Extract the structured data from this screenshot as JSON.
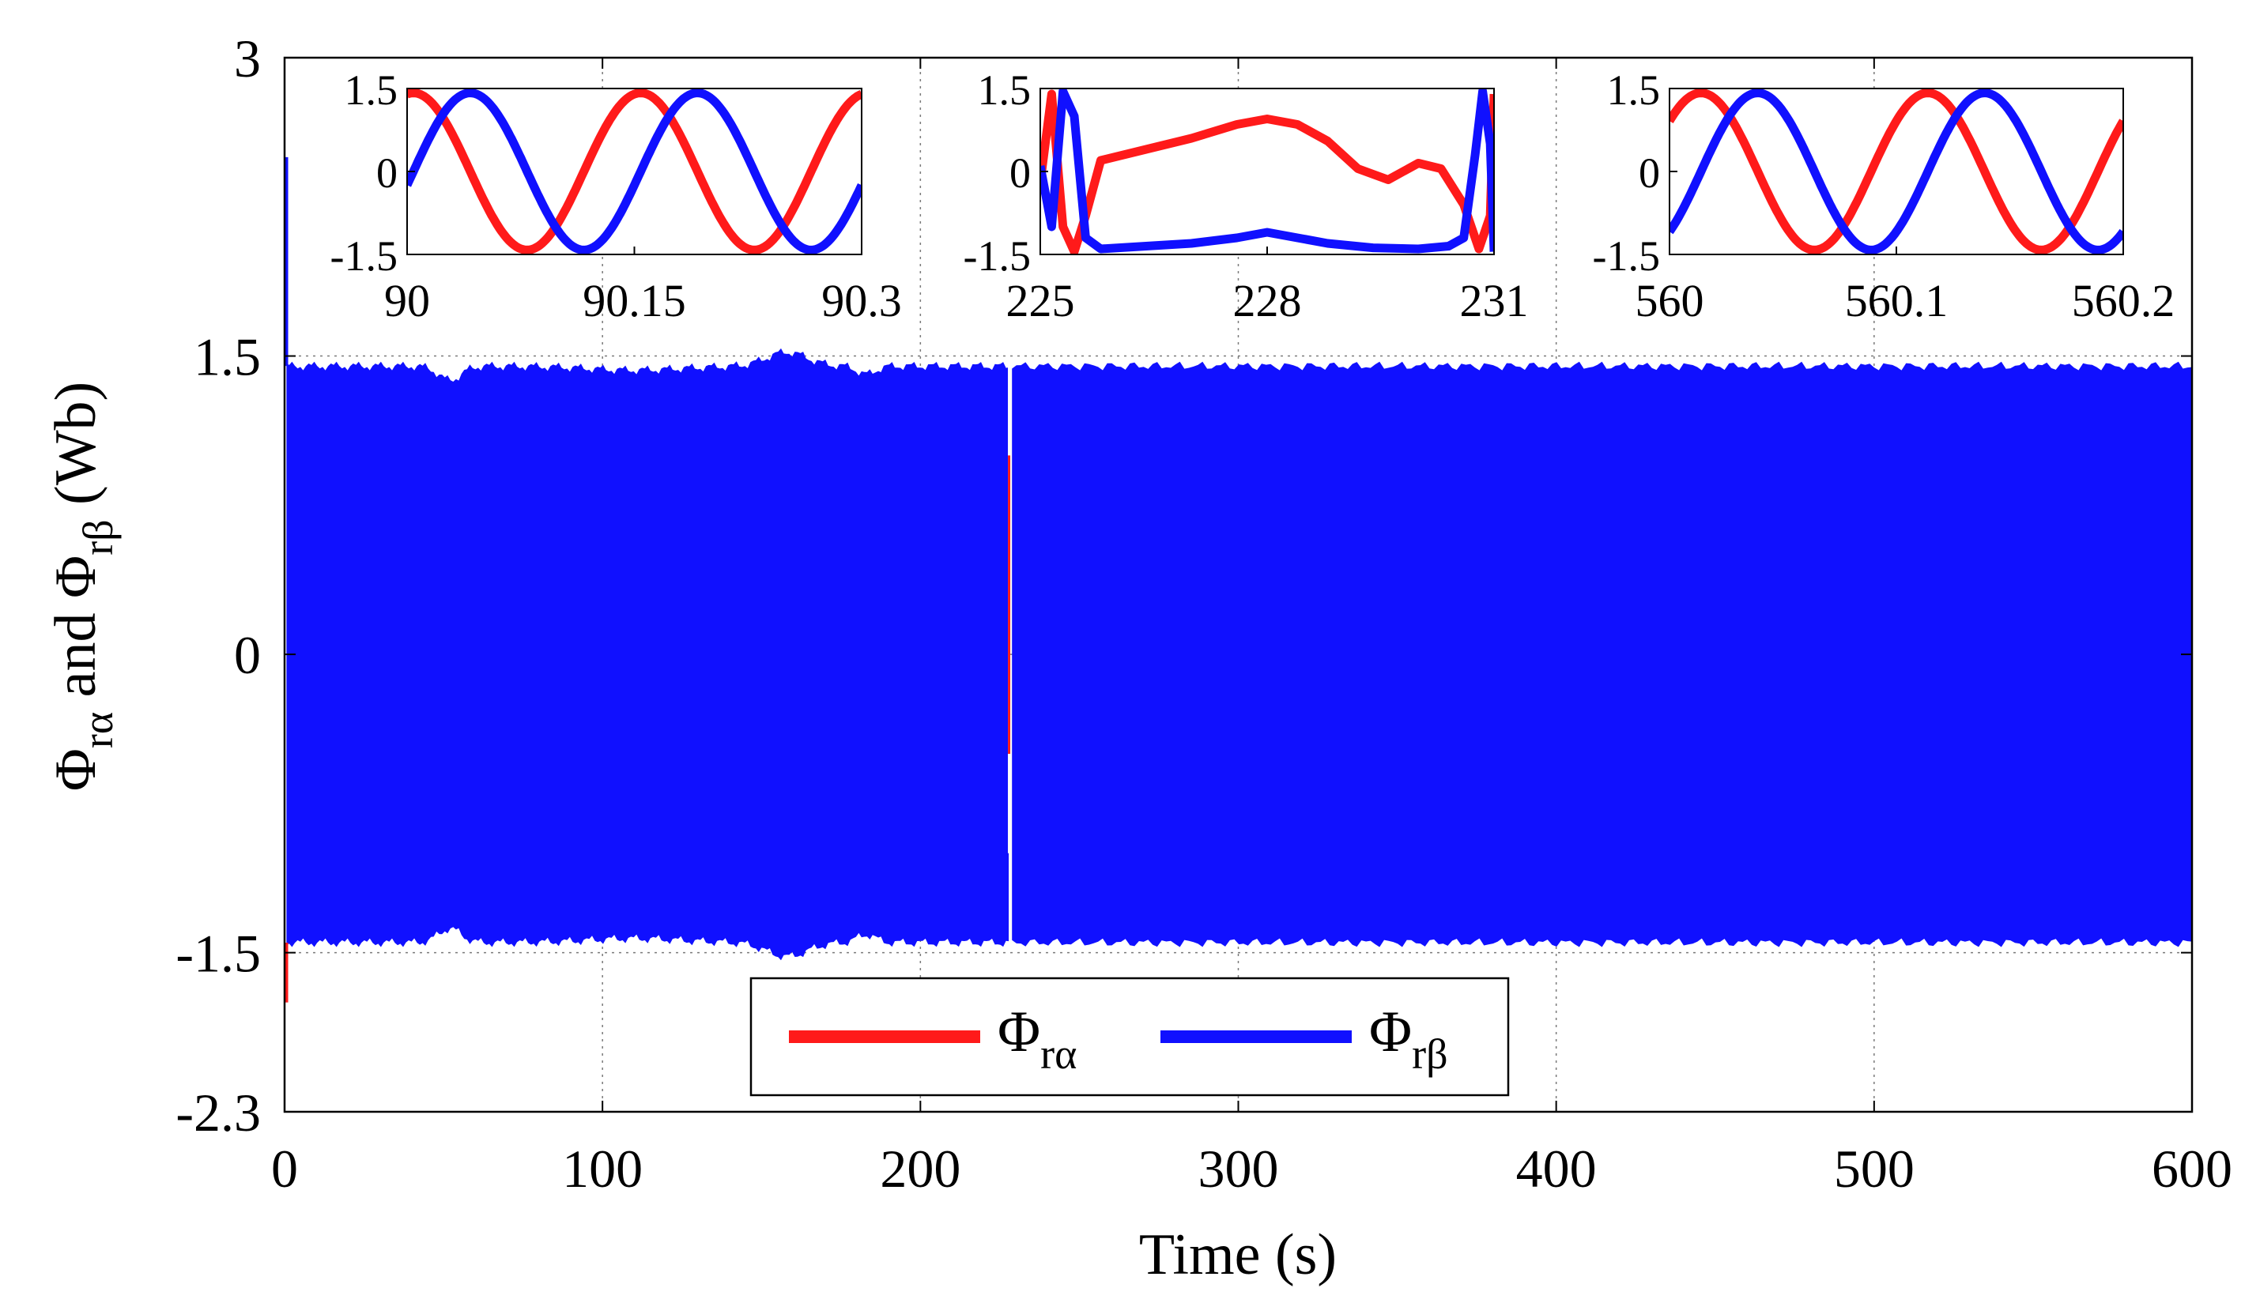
{
  "chart_data": {
    "type": "line",
    "xlabel": "Time (s)",
    "ylabel": {
      "prefix": "Φ",
      "sub1": "rα",
      "mid": " and Φ",
      "sub2": "rβ",
      "unit": " (Wb)"
    },
    "xlim": [
      0,
      600
    ],
    "ylim": [
      -2.3,
      3
    ],
    "xticks": [
      "0",
      "100",
      "200",
      "300",
      "400",
      "500",
      "600"
    ],
    "yticks": [
      {
        "value": 3,
        "label": "3"
      },
      {
        "value": 1.5,
        "label": "1.5"
      },
      {
        "value": 0,
        "label": "0"
      },
      {
        "value": -1.5,
        "label": "-1.5"
      },
      {
        "value": -2.3,
        "label": "-2.3"
      }
    ],
    "grid": true,
    "series": [
      {
        "name": "Φrα",
        "symbol": "Φ",
        "subscript": "rα",
        "color": "#ff1a1a",
        "envelope_upper": 1.45,
        "envelope_lower": -1.45,
        "frequency_hz": 6.7
      },
      {
        "name": "Φrβ",
        "symbol": "Φ",
        "subscript": "rβ",
        "color": "#1010ff",
        "envelope_upper": 1.45,
        "envelope_lower": -1.45,
        "frequency_hz": 6.7
      }
    ],
    "events": [
      {
        "name": "transient",
        "t_start": 225,
        "t_end": 231
      }
    ],
    "legend_position": "bottom-center",
    "insets": [
      {
        "xlim": [
          90,
          90.3
        ],
        "ylim": [
          -1.5,
          1.5
        ],
        "xticks": [
          "90",
          "90.15",
          "90.3"
        ],
        "yticks": [
          "1.5",
          "0",
          "-1.5"
        ],
        "kind": "sine",
        "period": 0.15,
        "alpha_phase_deg": 80,
        "beta_phase_deg": -10
      },
      {
        "xlim": [
          225,
          231
        ],
        "ylim": [
          -1.5,
          1.5
        ],
        "xticks": [
          "225",
          "228",
          "231"
        ],
        "yticks": [
          "1.5",
          "0",
          "-1.5"
        ],
        "kind": "transient",
        "alpha_points": [
          [
            225,
            -0.2
          ],
          [
            225.15,
            1.4
          ],
          [
            225.3,
            -1.0
          ],
          [
            225.45,
            -1.45
          ],
          [
            225.6,
            -0.8
          ],
          [
            225.8,
            0.2
          ],
          [
            226.4,
            0.4
          ],
          [
            227.0,
            0.6
          ],
          [
            227.6,
            0.85
          ],
          [
            228.0,
            0.95
          ],
          [
            228.4,
            0.85
          ],
          [
            228.8,
            0.55
          ],
          [
            229.2,
            0.05
          ],
          [
            229.6,
            -0.15
          ],
          [
            230.0,
            0.15
          ],
          [
            230.3,
            0.05
          ],
          [
            230.6,
            -0.6
          ],
          [
            230.8,
            -1.4
          ],
          [
            230.95,
            -0.8
          ],
          [
            231.0,
            1.4
          ]
        ],
        "beta_points": [
          [
            225,
            0.1
          ],
          [
            225.15,
            -1.0
          ],
          [
            225.3,
            1.45
          ],
          [
            225.45,
            1.0
          ],
          [
            225.6,
            -1.2
          ],
          [
            225.8,
            -1.4
          ],
          [
            226.4,
            -1.35
          ],
          [
            227.0,
            -1.3
          ],
          [
            227.6,
            -1.2
          ],
          [
            228.0,
            -1.1
          ],
          [
            228.4,
            -1.2
          ],
          [
            228.8,
            -1.3
          ],
          [
            229.4,
            -1.38
          ],
          [
            230.0,
            -1.4
          ],
          [
            230.4,
            -1.35
          ],
          [
            230.6,
            -1.2
          ],
          [
            230.75,
            0.3
          ],
          [
            230.85,
            1.45
          ],
          [
            230.95,
            0.5
          ],
          [
            231.0,
            -1.45
          ]
        ]
      },
      {
        "xlim": [
          560,
          560.2
        ],
        "ylim": [
          -1.5,
          1.5
        ],
        "xticks": [
          "560",
          "560.1",
          "560.2"
        ],
        "yticks": [
          "1.5",
          "0",
          "-1.5"
        ],
        "kind": "sine",
        "period": 0.1,
        "alpha_phase_deg": 40,
        "beta_phase_deg": -50
      }
    ]
  }
}
